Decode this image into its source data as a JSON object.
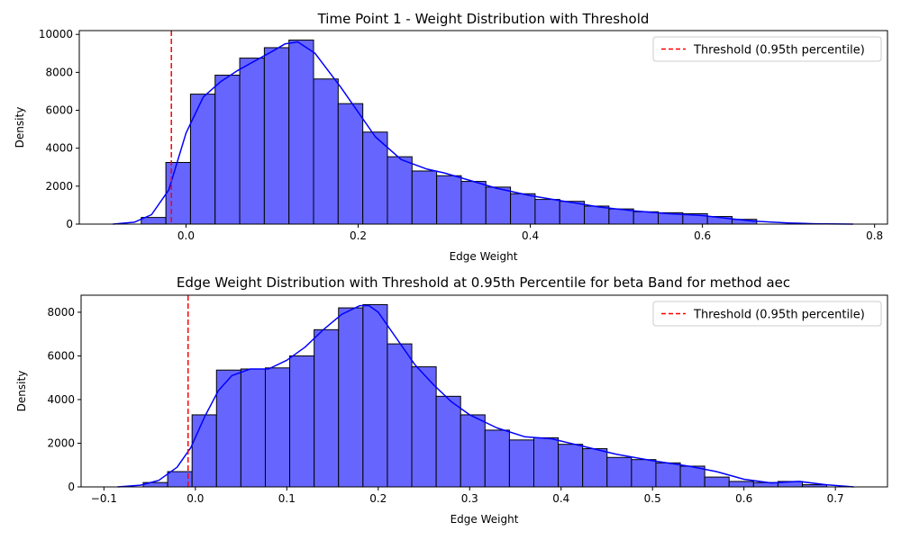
{
  "chart_data": [
    {
      "type": "bar",
      "title": "Time Point 1 - Weight Distribution with Threshold",
      "xlabel": "Edge Weight",
      "ylabel": "Density",
      "xlim": [
        -0.124,
        0.815
      ],
      "ylim": [
        0,
        10200
      ],
      "xticks": [
        0.0,
        0.2,
        0.4,
        0.6,
        0.8
      ],
      "xtick_labels": [
        "0.0",
        "0.2",
        "0.4",
        "0.6",
        "0.8"
      ],
      "yticks": [
        0,
        2000,
        4000,
        6000,
        8000,
        10000
      ],
      "ytick_labels": [
        "0",
        "2000",
        "4000",
        "6000",
        "8000",
        "10000"
      ],
      "grid": false,
      "legend_position": "top-right",
      "bin_start": -0.052,
      "bin_width": 0.0286,
      "values": [
        350,
        3250,
        6850,
        7850,
        8750,
        9300,
        9700,
        7650,
        6350,
        4850,
        3550,
        2800,
        2550,
        2250,
        1950,
        1600,
        1300,
        1200,
        950,
        800,
        650,
        600,
        550,
        400,
        250
      ],
      "kde": {
        "name": "",
        "x": [
          -0.085,
          -0.06,
          -0.04,
          -0.02,
          0.0,
          0.02,
          0.04,
          0.06,
          0.08,
          0.1,
          0.115,
          0.13,
          0.15,
          0.18,
          0.2,
          0.22,
          0.25,
          0.28,
          0.3,
          0.33,
          0.36,
          0.4,
          0.44,
          0.48,
          0.52,
          0.56,
          0.6,
          0.63,
          0.66,
          0.7,
          0.73,
          0.775
        ],
        "y": [
          0,
          100,
          500,
          1800,
          4800,
          6700,
          7500,
          8100,
          8600,
          9100,
          9500,
          9600,
          9000,
          7200,
          5900,
          4600,
          3400,
          2900,
          2700,
          2300,
          1900,
          1500,
          1200,
          900,
          700,
          550,
          450,
          300,
          150,
          60,
          20,
          0
        ]
      },
      "threshold": {
        "x": -0.017,
        "label": "Threshold (0.95th percentile)",
        "color": "#ff0000"
      },
      "colors": {
        "bar_fill": "#6666ff",
        "bar_edge": "#000000",
        "kde": "#0000ff"
      }
    },
    {
      "type": "bar",
      "title": "Edge Weight Distribution with Threshold at 0.95th Percentile for beta Band for method aec",
      "xlabel": "Edge Weight",
      "ylabel": "Density",
      "xlim": [
        -0.125,
        0.757
      ],
      "ylim": [
        0,
        8780
      ],
      "xticks": [
        -0.1,
        0.0,
        0.1,
        0.2,
        0.3,
        0.4,
        0.5,
        0.6,
        0.7
      ],
      "xtick_labels": [
        "−0.1",
        "0.0",
        "0.1",
        "0.2",
        "0.3",
        "0.4",
        "0.5",
        "0.6",
        "0.7"
      ],
      "yticks": [
        0,
        2000,
        4000,
        6000,
        8000
      ],
      "ytick_labels": [
        "0",
        "2000",
        "4000",
        "6000",
        "8000"
      ],
      "grid": false,
      "legend_position": "top-right",
      "bin_start": -0.057,
      "bin_width": 0.0267,
      "values": [
        200,
        700,
        3300,
        5350,
        5400,
        5450,
        6000,
        7200,
        8200,
        8350,
        6550,
        5500,
        4150,
        3300,
        2600,
        2150,
        2250,
        1950,
        1750,
        1350,
        1250,
        1100,
        950,
        450,
        250,
        200,
        250,
        100
      ],
      "kde": {
        "name": "",
        "x": [
          -0.085,
          -0.06,
          -0.04,
          -0.02,
          -0.005,
          0.01,
          0.025,
          0.04,
          0.06,
          0.08,
          0.1,
          0.12,
          0.14,
          0.16,
          0.18,
          0.19,
          0.2,
          0.22,
          0.24,
          0.26,
          0.28,
          0.3,
          0.33,
          0.36,
          0.39,
          0.42,
          0.46,
          0.5,
          0.54,
          0.57,
          0.6,
          0.63,
          0.66,
          0.69,
          0.72
        ],
        "y": [
          0,
          80,
          300,
          900,
          1800,
          3200,
          4400,
          5100,
          5400,
          5400,
          5800,
          6400,
          7200,
          7900,
          8300,
          8300,
          8000,
          6800,
          5600,
          4700,
          3900,
          3300,
          2700,
          2300,
          2200,
          1900,
          1500,
          1200,
          950,
          700,
          350,
          180,
          250,
          100,
          0
        ]
      },
      "threshold": {
        "x": -0.008,
        "label": "Threshold (0.95th percentile)",
        "color": "#ff0000"
      },
      "colors": {
        "bar_fill": "#6666ff",
        "bar_edge": "#000000",
        "kde": "#0000ff"
      }
    }
  ]
}
